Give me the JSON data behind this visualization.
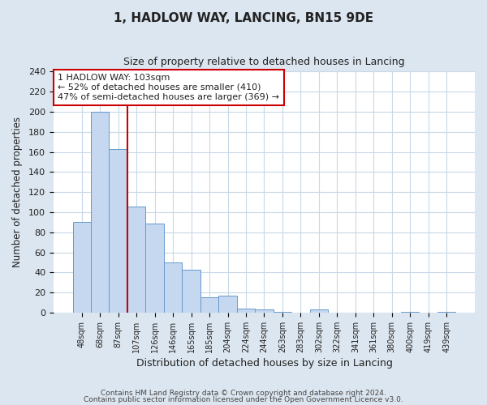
{
  "title": "1, HADLOW WAY, LANCING, BN15 9DE",
  "subtitle": "Size of property relative to detached houses in Lancing",
  "xlabel": "Distribution of detached houses by size in Lancing",
  "ylabel": "Number of detached properties",
  "bar_labels": [
    "48sqm",
    "68sqm",
    "87sqm",
    "107sqm",
    "126sqm",
    "146sqm",
    "165sqm",
    "185sqm",
    "204sqm",
    "224sqm",
    "244sqm",
    "263sqm",
    "283sqm",
    "302sqm",
    "322sqm",
    "341sqm",
    "361sqm",
    "380sqm",
    "400sqm",
    "419sqm",
    "439sqm"
  ],
  "bar_values": [
    90,
    200,
    163,
    106,
    89,
    50,
    43,
    15,
    17,
    4,
    3,
    1,
    0,
    3,
    0,
    0,
    0,
    0,
    1,
    0,
    1
  ],
  "bar_color": "#c5d8f0",
  "bar_edge_color": "#6699cc",
  "ref_line_x": 2.5,
  "ref_line_color": "#cc0000",
  "annotation_text": "1 HADLOW WAY: 103sqm\n← 52% of detached houses are smaller (410)\n47% of semi-detached houses are larger (369) →",
  "annotation_box_color": "#ffffff",
  "annotation_box_edge": "#cc0000",
  "ylim": [
    0,
    240
  ],
  "yticks": [
    0,
    20,
    40,
    60,
    80,
    100,
    120,
    140,
    160,
    180,
    200,
    220,
    240
  ],
  "footer1": "Contains HM Land Registry data © Crown copyright and database right 2024.",
  "footer2": "Contains public sector information licensed under the Open Government Licence v3.0.",
  "fig_bg_color": "#dce6f0",
  "plot_bg_color": "#ffffff",
  "grid_color": "#c8d8e8"
}
